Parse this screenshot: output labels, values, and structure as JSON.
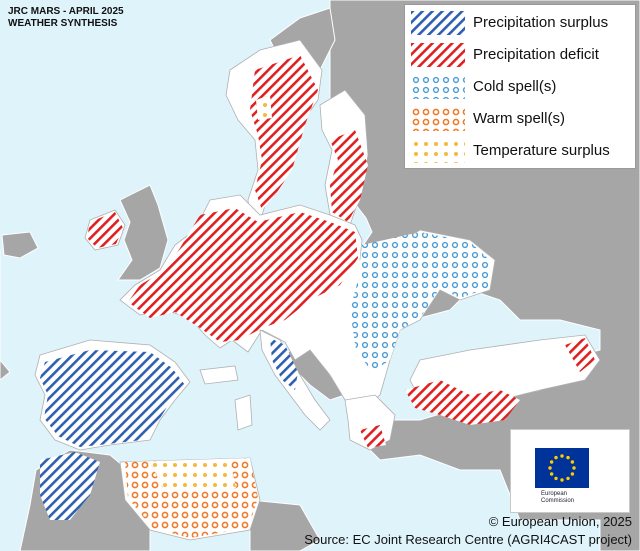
{
  "header": {
    "title_line1": "JRC MARS - APRIL 2025",
    "title_line2": "WEATHER SYNTHESIS"
  },
  "legend": [
    {
      "label": "Precipitation surplus",
      "pattern": "blue-hatch",
      "color": "#2e5fb0"
    },
    {
      "label": "Precipitation deficit",
      "pattern": "red-hatch",
      "color": "#e02020"
    },
    {
      "label": "Cold spell(s)",
      "pattern": "blue-rings",
      "color": "#4a9bd6"
    },
    {
      "label": "Warm spell(s)",
      "pattern": "orange-rings",
      "color": "#f07a2a"
    },
    {
      "label": "Temperature surplus",
      "pattern": "yellow-dots",
      "color": "#f6b93b"
    }
  ],
  "logo": {
    "line1": "European",
    "line2": "Commission"
  },
  "footer": {
    "copyright": "© European Union, 2025",
    "source": "Source: EC Joint Research Centre (AGRI4CAST project)"
  },
  "colors": {
    "sea": "#dff3fb",
    "land_other": "#a6a6a6",
    "land_eu": "#ffffff"
  }
}
